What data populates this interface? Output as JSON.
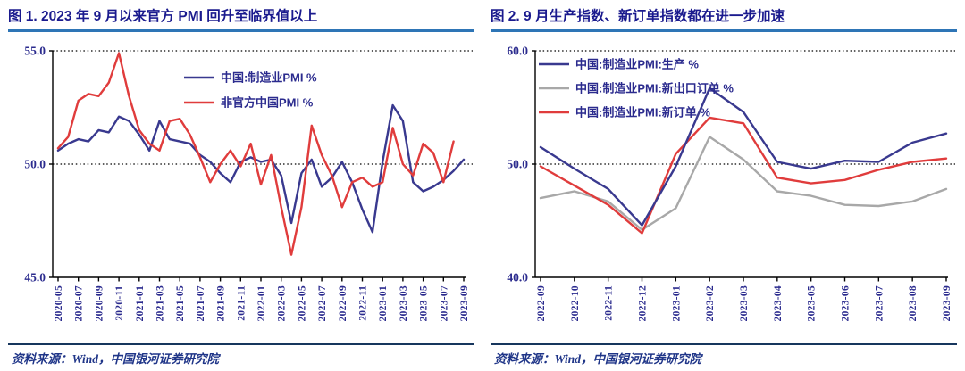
{
  "colors": {
    "title_color": "#1a1a8e",
    "title_rule_color": "#2e75b6",
    "axis_label_color": "#2b2b8e",
    "legend_text_color": "#2b2b8e",
    "source_text_color": "#1f3588",
    "source_rule_color": "#17365d",
    "grid_color": "#000000",
    "axis_color": "#000000"
  },
  "chart_data": [
    {
      "type": "line",
      "title": "图 1. 2023 年 9 月以来官方 PMI 回升至临界值以上",
      "source": "资料来源：Wind，中国银河证券研究院",
      "xlabel": "",
      "ylabel": "",
      "ylim": [
        45,
        55
      ],
      "yticks": [
        45,
        50,
        55
      ],
      "grid": "horizontal dotted at 50.0 and 55.0",
      "legend_position": "top-center-inside",
      "x_tick_every": 2,
      "x": [
        "2020-05",
        "2020-06",
        "2020-07",
        "2020-08",
        "2020-09",
        "2020-10",
        "2020-11",
        "2020-12",
        "2021-01",
        "2021-02",
        "2021-03",
        "2021-04",
        "2021-05",
        "2021-06",
        "2021-07",
        "2021-08",
        "2021-09",
        "2021-10",
        "2021-11",
        "2021-12",
        "2022-01",
        "2022-02",
        "2022-03",
        "2022-04",
        "2022-05",
        "2022-06",
        "2022-07",
        "2022-08",
        "2022-09",
        "2022-10",
        "2022-11",
        "2022-12",
        "2023-01",
        "2023-02",
        "2023-03",
        "2023-04",
        "2023-05",
        "2023-06",
        "2023-07",
        "2023-08",
        "2023-09"
      ],
      "series": [
        {
          "name": "中国:制造业PMI %",
          "color": "#39398f",
          "values": [
            50.6,
            50.9,
            51.1,
            51.0,
            51.5,
            51.4,
            52.1,
            51.9,
            51.3,
            50.6,
            51.9,
            51.1,
            51.0,
            50.9,
            50.4,
            50.1,
            49.6,
            49.2,
            50.1,
            50.3,
            50.1,
            50.2,
            49.5,
            47.4,
            49.6,
            50.2,
            49.0,
            49.4,
            50.1,
            49.2,
            48.0,
            47.0,
            50.1,
            52.6,
            51.9,
            49.2,
            48.8,
            49.0,
            49.3,
            49.7,
            50.2
          ]
        },
        {
          "name": "非官方中国PMI %",
          "color": "#e03c3c",
          "values": [
            50.7,
            51.2,
            52.8,
            53.1,
            53.0,
            53.6,
            54.9,
            53.0,
            51.5,
            50.9,
            50.6,
            51.9,
            52.0,
            51.3,
            50.3,
            49.2,
            50.0,
            50.6,
            49.9,
            50.9,
            49.1,
            50.4,
            48.1,
            46.0,
            48.1,
            51.7,
            50.4,
            49.5,
            48.1,
            49.2,
            49.4,
            49.0,
            49.2,
            51.6,
            50.0,
            49.5,
            50.9,
            50.5,
            49.2,
            51.0
          ]
        }
      ]
    },
    {
      "type": "line",
      "title": "图 2. 9 月生产指数、新订单指数都在进一步加速",
      "source": "资料来源：Wind，中国银河证券研究院",
      "xlabel": "",
      "ylabel": "",
      "ylim": [
        40,
        60
      ],
      "yticks": [
        40,
        50,
        60
      ],
      "grid": "horizontal dotted at 50.0 and 60.0",
      "legend_position": "top-left-inside",
      "x_tick_every": 1,
      "x": [
        "2022-09",
        "2022-10",
        "2022-11",
        "2022-12",
        "2023-01",
        "2023-02",
        "2023-03",
        "2023-04",
        "2023-05",
        "2023-06",
        "2023-07",
        "2023-08",
        "2023-09"
      ],
      "series": [
        {
          "name": "中国:制造业PMI:生产 %",
          "color": "#39398f",
          "values": [
            51.5,
            49.6,
            47.8,
            44.6,
            49.8,
            56.7,
            54.6,
            50.2,
            49.6,
            50.3,
            50.2,
            51.9,
            52.7
          ]
        },
        {
          "name": "中国:制造业PMI:新出口订单 %",
          "color": "#a8a8a8",
          "values": [
            47.0,
            47.6,
            46.7,
            44.2,
            46.1,
            52.4,
            50.4,
            47.6,
            47.2,
            46.4,
            46.3,
            46.7,
            47.8
          ]
        },
        {
          "name": "中国:制造业PMI:新订单 %",
          "color": "#e03c3c",
          "values": [
            49.8,
            48.1,
            46.4,
            43.9,
            50.9,
            54.1,
            53.6,
            48.8,
            48.3,
            48.6,
            49.5,
            50.2,
            50.5
          ]
        }
      ]
    }
  ]
}
